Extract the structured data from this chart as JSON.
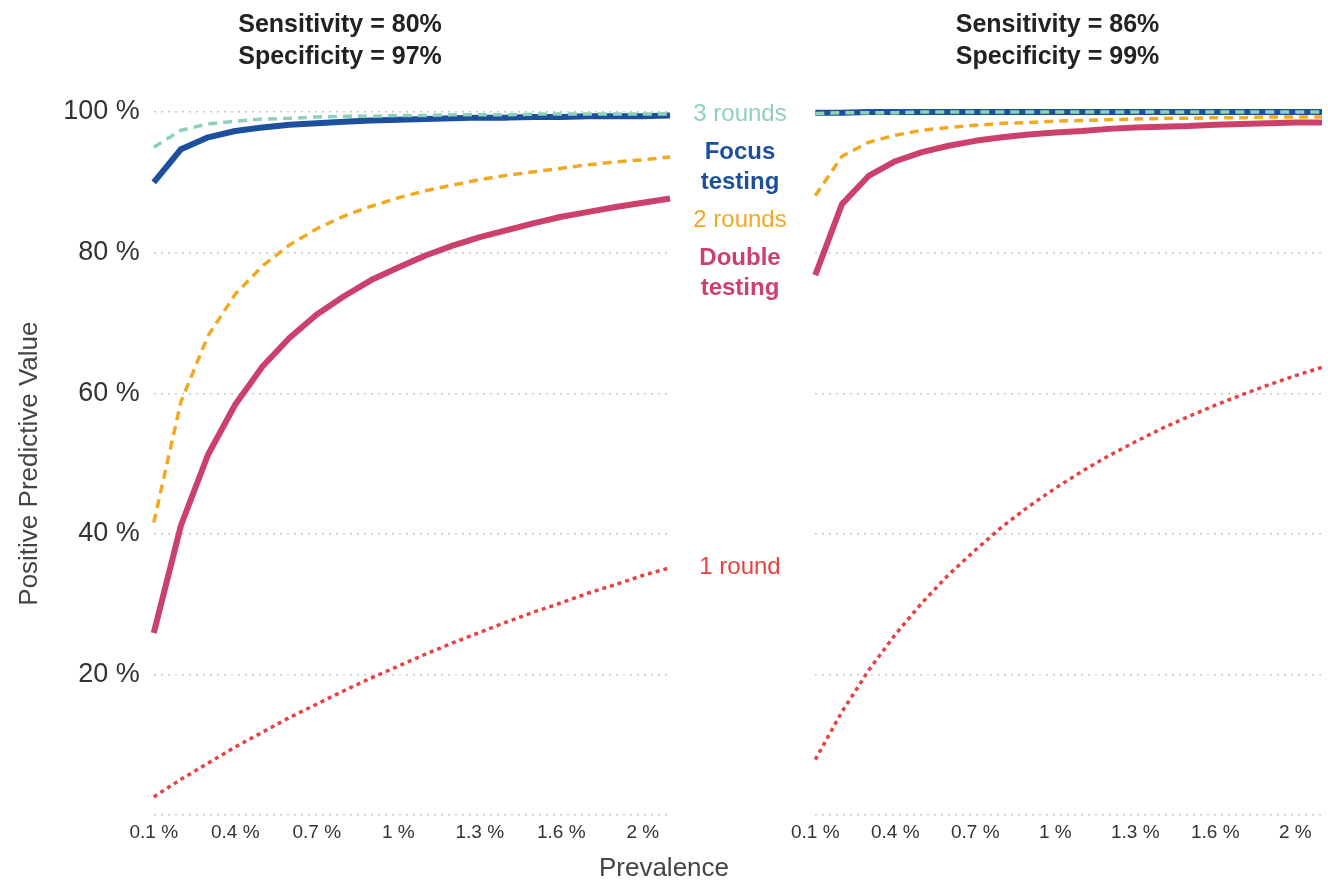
{
  "chart_data": [
    {
      "type": "line",
      "title": "Sensitivity = 80%",
      "subtitle": "Specificity = 97%",
      "xlabel": "Prevalence",
      "ylabel": "Positive Predictive Value",
      "x": [
        0.1,
        0.2,
        0.3,
        0.4,
        0.5,
        0.6,
        0.7,
        0.8,
        0.9,
        1.0,
        1.1,
        1.2,
        1.3,
        1.4,
        1.5,
        1.6,
        1.7,
        1.8,
        1.9,
        2.0
      ],
      "xlim": [
        0.1,
        2.0
      ],
      "xticks": [
        {
          "value": 0.1,
          "label": "0.1 %"
        },
        {
          "value": 0.4,
          "label": "0.4 %"
        },
        {
          "value": 0.7,
          "label": "0.7 %"
        },
        {
          "value": 1.0,
          "label": "1 %"
        },
        {
          "value": 1.3,
          "label": "1.3 %"
        },
        {
          "value": 1.6,
          "label": "1.6 %"
        },
        {
          "value": 1.9,
          "label": "2 %"
        }
      ],
      "ylim": [
        0,
        100
      ],
      "yticks": [
        {
          "value": 0,
          "label": null
        },
        {
          "value": 20,
          "label": "20 %"
        },
        {
          "value": 40,
          "label": "40 %"
        },
        {
          "value": 60,
          "label": "60 %"
        },
        {
          "value": 80,
          "label": "80 %"
        },
        {
          "value": 100,
          "label": "100 %"
        }
      ],
      "grid": "y",
      "legend": false,
      "marker": "none",
      "series": [
        {
          "name": "1 round",
          "color": "#e8413f",
          "line_style": "dotted",
          "values": [
            2.6,
            5.1,
            7.4,
            9.7,
            11.8,
            13.9,
            15.8,
            17.7,
            19.5,
            21.2,
            22.9,
            24.5,
            26.0,
            27.5,
            28.9,
            30.2,
            31.6,
            32.8,
            34.1,
            35.2
          ]
        },
        {
          "name": "2 rounds",
          "color": "#f2a922",
          "line_style": "dashed",
          "values": [
            41.6,
            58.8,
            68.2,
            74.1,
            78.1,
            81.1,
            83.4,
            85.2,
            86.6,
            87.8,
            88.8,
            89.6,
            90.4,
            91.0,
            91.5,
            92.0,
            92.5,
            92.9,
            93.2,
            93.6
          ]
        },
        {
          "name": "Double testing",
          "color": "#cc406c",
          "line_style": "solid",
          "values": [
            25.9,
            41.2,
            51.3,
            58.4,
            63.8,
            67.9,
            71.2,
            73.8,
            76.1,
            77.9,
            79.6,
            81.0,
            82.2,
            83.2,
            84.2,
            85.1,
            85.8,
            86.5,
            87.1,
            87.7
          ]
        },
        {
          "name": "Focus testing",
          "color": "#1c4f9c",
          "line_style": "solid",
          "values": [
            90.0,
            94.7,
            96.4,
            97.3,
            97.8,
            98.2,
            98.4,
            98.6,
            98.8,
            98.9,
            99.0,
            99.1,
            99.2,
            99.2,
            99.3,
            99.3,
            99.4,
            99.4,
            99.4,
            99.5
          ]
        },
        {
          "name": "3 rounds",
          "color": "#8fd0bb",
          "line_style": "dashed",
          "values": [
            95.0,
            97.4,
            98.3,
            98.7,
            99.0,
            99.1,
            99.3,
            99.4,
            99.4,
            99.5,
            99.5,
            99.6,
            99.6,
            99.6,
            99.7,
            99.7,
            99.7,
            99.7,
            99.7,
            99.7
          ]
        }
      ]
    },
    {
      "type": "line",
      "title": "Sensitivity = 86%",
      "subtitle": "Specificity = 99%",
      "x": [
        0.1,
        0.2,
        0.3,
        0.4,
        0.5,
        0.6,
        0.7,
        0.8,
        0.9,
        1.0,
        1.1,
        1.2,
        1.3,
        1.4,
        1.5,
        1.6,
        1.7,
        1.8,
        1.9,
        2.0
      ],
      "xlim": [
        0.1,
        2.0
      ],
      "xticks": [
        {
          "value": 0.1,
          "label": "0.1 %"
        },
        {
          "value": 0.4,
          "label": "0.4 %"
        },
        {
          "value": 0.7,
          "label": "0.7 %"
        },
        {
          "value": 1.0,
          "label": "1 %"
        },
        {
          "value": 1.3,
          "label": "1.3 %"
        },
        {
          "value": 1.6,
          "label": "1.6 %"
        },
        {
          "value": 1.9,
          "label": "2 %"
        }
      ],
      "ylim": [
        0,
        100
      ],
      "yticks": [
        0,
        20,
        40,
        60,
        80,
        100
      ],
      "tick_labels": "x",
      "grid": "y",
      "legend": false,
      "marker": "none",
      "series": [
        {
          "color": "#e8413f",
          "line_style": "dotted",
          "values": [
            7.9,
            14.7,
            20.6,
            25.7,
            30.2,
            34.2,
            37.7,
            41.0,
            43.9,
            46.5,
            48.9,
            51.1,
            53.1,
            55.0,
            56.7,
            58.3,
            59.8,
            61.2,
            62.5,
            63.7
          ]
        },
        {
          "color": "#f2a922",
          "line_style": "dashed",
          "values": [
            88.1,
            93.7,
            95.7,
            96.7,
            97.4,
            97.8,
            98.1,
            98.4,
            98.5,
            98.7,
            98.8,
            98.9,
            99.0,
            99.1,
            99.1,
            99.2,
            99.2,
            99.3,
            99.3,
            99.3
          ]
        },
        {
          "color": "#cc406c",
          "line_style": "solid",
          "values": [
            76.8,
            86.9,
            90.9,
            93.0,
            94.3,
            95.2,
            95.9,
            96.4,
            96.8,
            97.1,
            97.3,
            97.6,
            97.8,
            97.9,
            98.0,
            98.2,
            98.3,
            98.4,
            98.5,
            98.5
          ]
        },
        {
          "color": "#1c4f9c",
          "line_style": "solid",
          "values": [
            99.9,
            99.9,
            100,
            100,
            100,
            100,
            100,
            100,
            100,
            100,
            100,
            100,
            100,
            100,
            100,
            100,
            100,
            100,
            100,
            100
          ]
        },
        {
          "color": "#8fd0bb",
          "line_style": "dashed",
          "values": [
            99.8,
            99.9,
            99.9,
            99.9,
            100,
            100,
            100,
            100,
            100,
            100,
            100,
            100,
            100,
            100,
            100,
            100,
            100,
            100,
            100,
            100
          ]
        }
      ]
    }
  ]
}
